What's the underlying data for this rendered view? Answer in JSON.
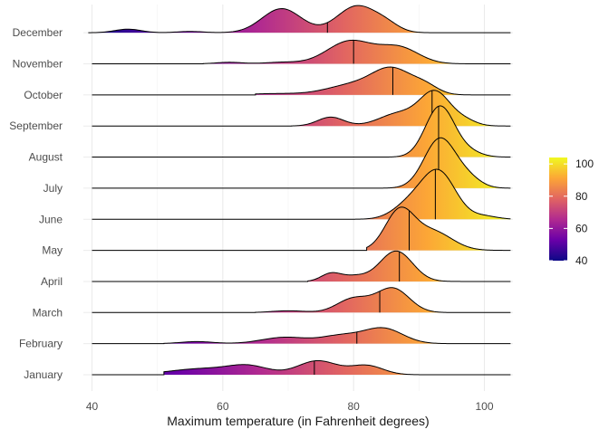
{
  "chart_data": {
    "type": "ridgeline",
    "xlabel": "Maximum temperature (in Fahrenheit degrees)",
    "ylabel": "",
    "xlim": [
      38.5,
      104
    ],
    "x_ticks": [
      40,
      60,
      80,
      100
    ],
    "grid": true,
    "legend": {
      "placement": "right",
      "type": "colorbar",
      "ticks": [
        40,
        60,
        80,
        100
      ],
      "colors": [
        "#0d0887",
        "#6a00a8",
        "#b12a90",
        "#e16462",
        "#fca636",
        "#f0f921"
      ]
    },
    "categories": [
      "January",
      "February",
      "March",
      "April",
      "May",
      "June",
      "July",
      "August",
      "September",
      "October",
      "November",
      "December"
    ],
    "series": [
      {
        "name": "January",
        "min": 51,
        "max": 104,
        "median": 74,
        "peaks": [
          [
            57,
            5,
            0.24
          ],
          [
            64,
            3,
            0.3
          ],
          [
            74.5,
            3,
            0.55
          ],
          [
            82,
            2.5,
            0.36
          ]
        ]
      },
      {
        "name": "February",
        "min": 51,
        "max": 104,
        "median": 80.5,
        "peaks": [
          [
            56,
            2.5,
            0.08
          ],
          [
            69.5,
            3.5,
            0.25
          ],
          [
            78,
            3,
            0.3
          ],
          [
            84.5,
            3,
            0.6
          ]
        ]
      },
      {
        "name": "March",
        "min": 65,
        "max": 104,
        "median": 84,
        "peaks": [
          [
            70,
            2.5,
            0.07
          ],
          [
            80,
            2.5,
            0.55
          ],
          [
            86,
            2.5,
            0.95
          ]
        ]
      },
      {
        "name": "April",
        "min": 73,
        "max": 104,
        "median": 87,
        "peaks": [
          [
            76.5,
            1.5,
            0.3
          ],
          [
            80,
            2,
            0.2
          ],
          [
            86.5,
            2.5,
            1.2
          ]
        ]
      },
      {
        "name": "May",
        "min": 82,
        "max": 104,
        "median": 88.5,
        "peaks": [
          [
            87,
            2.2,
            1.5
          ],
          [
            92,
            3,
            0.75
          ]
        ]
      },
      {
        "name": "June",
        "min": 80,
        "max": 104,
        "median": 92.5,
        "peaks": [
          [
            88.5,
            2.5,
            0.55
          ],
          [
            93,
            2.6,
            1.85
          ],
          [
            100,
            2,
            0.12
          ]
        ]
      },
      {
        "name": "July",
        "min": 84,
        "max": 104,
        "median": 93,
        "peaks": [
          [
            93.2,
            2.4,
            1.95
          ],
          [
            97.5,
            2,
            0.35
          ]
        ]
      },
      {
        "name": "August",
        "min": 84,
        "max": 104,
        "median": 93,
        "peaks": [
          [
            93.2,
            2.2,
            2.0
          ],
          [
            97.5,
            2,
            0.2
          ]
        ]
      },
      {
        "name": "September",
        "min": 70.5,
        "max": 104,
        "median": 92,
        "peaks": [
          [
            76.5,
            2,
            0.35
          ],
          [
            87,
            3,
            0.5
          ],
          [
            92.5,
            2.3,
            1.3
          ],
          [
            97,
            1.8,
            0.2
          ]
        ]
      },
      {
        "name": "October",
        "min": 65,
        "max": 104,
        "median": 86,
        "peaks": [
          [
            68,
            4,
            0.05
          ],
          [
            80,
            4,
            0.4
          ],
          [
            86,
            3,
            0.95
          ],
          [
            91,
            2,
            0.3
          ]
        ]
      },
      {
        "name": "November",
        "min": 57,
        "max": 104,
        "median": 80,
        "peaks": [
          [
            61,
            2,
            0.06
          ],
          [
            69,
            2.5,
            0.06
          ],
          [
            79.5,
            3.5,
            0.9
          ],
          [
            87,
            3,
            0.62
          ]
        ]
      },
      {
        "name": "December",
        "min": 39.5,
        "max": 104,
        "median": 76,
        "peaks": [
          [
            45.5,
            2,
            0.14
          ],
          [
            55,
            2,
            0.05
          ],
          [
            69,
            3,
            0.95
          ],
          [
            80.5,
            3,
            1.05
          ],
          [
            85,
            2,
            0.25
          ]
        ]
      }
    ]
  }
}
